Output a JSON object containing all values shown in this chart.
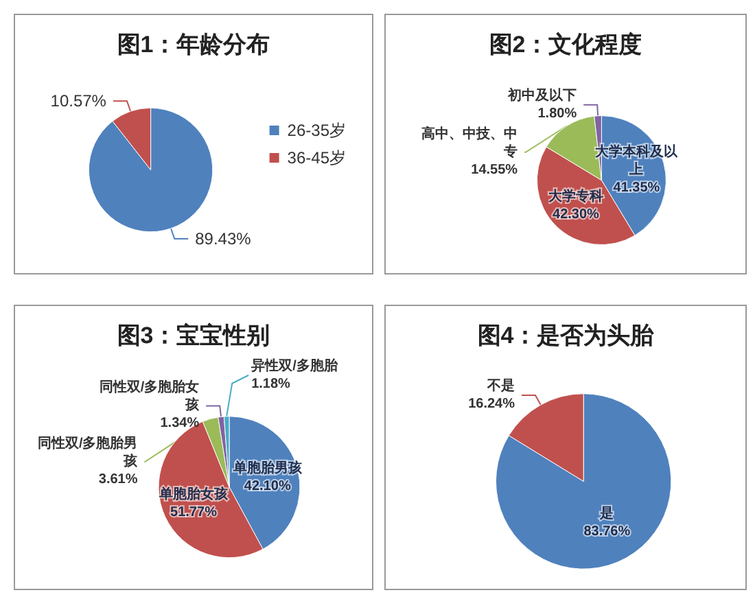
{
  "chart_data": [
    {
      "type": "pie",
      "title": "图1：年龄分布",
      "categories": [
        "26-35岁",
        "36-45岁"
      ],
      "values": [
        89.43,
        10.57
      ],
      "value_labels": [
        "89.43%",
        "10.57%"
      ],
      "colors": [
        "#4f81bd",
        "#c0504d"
      ],
      "legend": "right"
    },
    {
      "type": "pie",
      "title": "图2：文化程度",
      "categories": [
        "大学本科及以上",
        "大学专科",
        "高中、中技、中专",
        "初中及以下"
      ],
      "values": [
        41.35,
        42.3,
        14.55,
        1.8
      ],
      "value_labels": [
        "41.35%",
        "42.30%",
        "14.55%",
        "1.80%"
      ],
      "colors": [
        "#4f81bd",
        "#c0504d",
        "#9bbb59",
        "#8064a2"
      ],
      "legend": false
    },
    {
      "type": "pie",
      "title": "图3：宝宝性别",
      "categories": [
        "单胞胎男孩",
        "单胞胎女孩",
        "同性双/多胞胎男孩",
        "同性双/多胞胎女孩",
        "异性双/多胞胎"
      ],
      "values": [
        42.1,
        51.77,
        3.61,
        1.34,
        1.18
      ],
      "value_labels": [
        "42.10%",
        "51.77%",
        "3.61%",
        "1.34%",
        "1.18%"
      ],
      "colors": [
        "#4f81bd",
        "#c0504d",
        "#9bbb59",
        "#8064a2",
        "#4bacc6"
      ],
      "legend": false
    },
    {
      "type": "pie",
      "title": "图4：是否为头胎",
      "categories": [
        "是",
        "不是"
      ],
      "values": [
        83.76,
        16.24
      ],
      "value_labels": [
        "83.76%",
        "16.24%"
      ],
      "colors": [
        "#4f81bd",
        "#c0504d"
      ],
      "legend": false
    }
  ]
}
